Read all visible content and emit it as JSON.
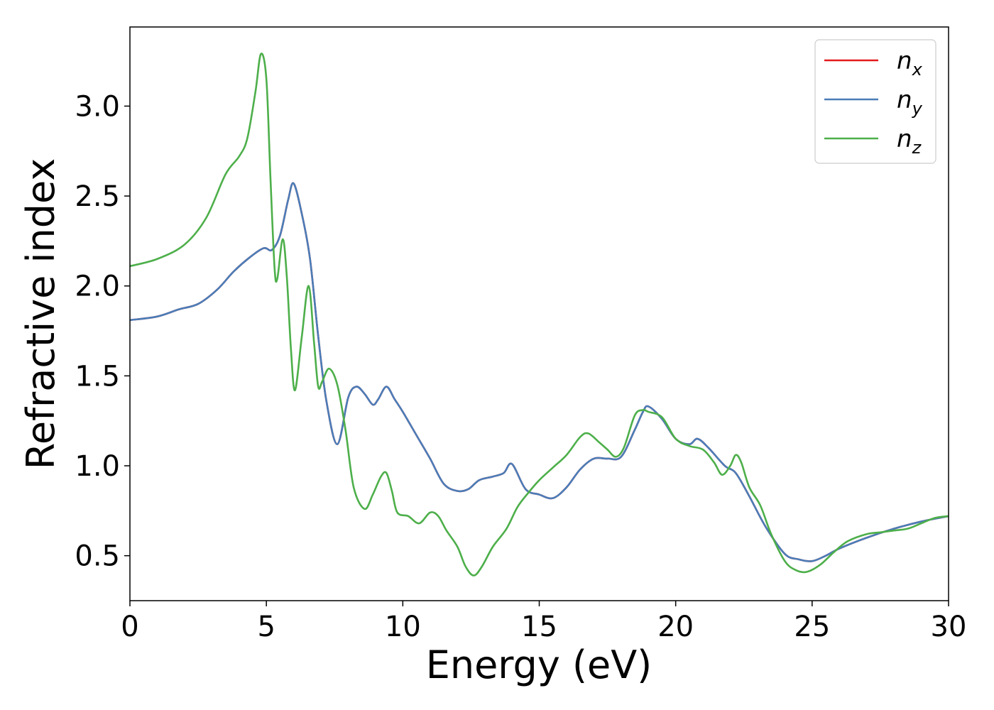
{
  "chart_data": {
    "type": "line",
    "xlabel": "Energy (eV)",
    "ylabel": "Refractive index",
    "xlim": [
      0,
      30
    ],
    "ylim": [
      0.25,
      3.44
    ],
    "xticks": [
      "0",
      "5",
      "10",
      "15",
      "20",
      "25",
      "30"
    ],
    "yticks": [
      "0.5",
      "1.0",
      "1.5",
      "2.0",
      "2.5",
      "3.0"
    ],
    "grid": false,
    "legend_position": "top-right",
    "series": [
      {
        "name": "n",
        "subscript": "x",
        "color": "#e41a1c",
        "x": [
          0,
          1,
          1.8,
          2.5,
          3.2,
          3.8,
          4.4,
          4.9,
          5.2,
          5.5,
          5.8,
          6.0,
          6.3,
          6.6,
          6.9,
          7.2,
          7.6,
          8.0,
          8.3,
          8.6,
          8.9,
          9.1,
          9.4,
          9.7,
          10.0,
          10.5,
          11.0,
          11.5,
          12.0,
          12.4,
          12.8,
          13.3,
          13.7,
          14.0,
          14.5,
          15.0,
          15.5,
          16.0,
          16.5,
          17.0,
          17.5,
          18.0,
          18.5,
          18.8,
          19.0,
          19.5,
          20.0,
          20.5,
          20.8,
          21.2,
          21.8,
          22.2,
          22.7,
          23.3,
          24.0,
          24.5,
          25.0,
          25.5,
          26.0,
          27.0,
          28.0,
          29.0,
          30.0
        ],
        "y": [
          1.81,
          1.83,
          1.87,
          1.9,
          1.98,
          2.08,
          2.16,
          2.21,
          2.2,
          2.28,
          2.48,
          2.57,
          2.4,
          2.15,
          1.72,
          1.36,
          1.12,
          1.38,
          1.44,
          1.4,
          1.34,
          1.37,
          1.44,
          1.37,
          1.3,
          1.17,
          1.04,
          0.9,
          0.86,
          0.87,
          0.92,
          0.94,
          0.96,
          1.01,
          0.87,
          0.84,
          0.82,
          0.88,
          0.98,
          1.04,
          1.04,
          1.05,
          1.2,
          1.3,
          1.33,
          1.26,
          1.15,
          1.12,
          1.15,
          1.1,
          1.0,
          0.96,
          0.83,
          0.66,
          0.51,
          0.48,
          0.47,
          0.5,
          0.54,
          0.6,
          0.65,
          0.69,
          0.72
        ]
      },
      {
        "name": "n",
        "subscript": "y",
        "color": "#4a7db8",
        "x": [
          0,
          1,
          1.8,
          2.5,
          3.2,
          3.8,
          4.4,
          4.9,
          5.2,
          5.5,
          5.8,
          6.0,
          6.3,
          6.6,
          6.9,
          7.2,
          7.6,
          8.0,
          8.3,
          8.6,
          8.9,
          9.1,
          9.4,
          9.7,
          10.0,
          10.5,
          11.0,
          11.5,
          12.0,
          12.4,
          12.8,
          13.3,
          13.7,
          14.0,
          14.5,
          15.0,
          15.5,
          16.0,
          16.5,
          17.0,
          17.5,
          18.0,
          18.5,
          18.8,
          19.0,
          19.5,
          20.0,
          20.5,
          20.8,
          21.2,
          21.8,
          22.2,
          22.7,
          23.3,
          24.0,
          24.5,
          25.0,
          25.5,
          26.0,
          27.0,
          28.0,
          29.0,
          30.0
        ],
        "y": [
          1.81,
          1.83,
          1.87,
          1.9,
          1.98,
          2.08,
          2.16,
          2.21,
          2.2,
          2.28,
          2.48,
          2.57,
          2.4,
          2.15,
          1.72,
          1.36,
          1.12,
          1.38,
          1.44,
          1.4,
          1.34,
          1.37,
          1.44,
          1.37,
          1.3,
          1.17,
          1.04,
          0.9,
          0.86,
          0.87,
          0.92,
          0.94,
          0.96,
          1.01,
          0.87,
          0.84,
          0.82,
          0.88,
          0.98,
          1.04,
          1.04,
          1.05,
          1.2,
          1.3,
          1.33,
          1.26,
          1.15,
          1.12,
          1.15,
          1.1,
          1.0,
          0.96,
          0.83,
          0.66,
          0.51,
          0.48,
          0.47,
          0.5,
          0.54,
          0.6,
          0.65,
          0.69,
          0.72
        ]
      },
      {
        "name": "n",
        "subscript": "z",
        "color": "#4daf4a",
        "x": [
          0,
          1,
          2,
          2.8,
          3.5,
          4.0,
          4.3,
          4.6,
          4.8,
          5.0,
          5.15,
          5.3,
          5.4,
          5.6,
          5.75,
          5.9,
          6.05,
          6.3,
          6.55,
          6.75,
          6.9,
          7.05,
          7.3,
          7.6,
          7.9,
          8.2,
          8.6,
          8.9,
          9.2,
          9.4,
          9.6,
          9.8,
          10.2,
          10.6,
          11.0,
          11.3,
          11.6,
          12.0,
          12.3,
          12.6,
          12.9,
          13.3,
          13.8,
          14.2,
          14.6,
          15.0,
          15.5,
          16.0,
          16.5,
          16.8,
          17.2,
          17.5,
          17.8,
          18.1,
          18.5,
          18.8,
          19.0,
          19.5,
          20.0,
          20.5,
          21.0,
          21.4,
          21.7,
          22.0,
          22.2,
          22.4,
          22.7,
          23.1,
          23.5,
          24.0,
          24.4,
          24.8,
          25.3,
          25.8,
          26.3,
          27.0,
          27.5,
          28.0,
          28.5,
          29.0,
          29.5,
          30.0
        ],
        "y": [
          2.11,
          2.15,
          2.23,
          2.38,
          2.62,
          2.72,
          2.82,
          3.08,
          3.29,
          3.15,
          2.6,
          2.1,
          2.04,
          2.26,
          2.05,
          1.65,
          1.42,
          1.72,
          2.0,
          1.68,
          1.44,
          1.47,
          1.54,
          1.45,
          1.2,
          0.88,
          0.76,
          0.84,
          0.94,
          0.96,
          0.86,
          0.74,
          0.72,
          0.68,
          0.74,
          0.72,
          0.64,
          0.55,
          0.44,
          0.39,
          0.44,
          0.55,
          0.65,
          0.77,
          0.85,
          0.92,
          0.99,
          1.06,
          1.16,
          1.18,
          1.13,
          1.09,
          1.05,
          1.1,
          1.28,
          1.31,
          1.3,
          1.27,
          1.15,
          1.11,
          1.09,
          1.02,
          0.95,
          1.0,
          1.06,
          1.02,
          0.88,
          0.78,
          0.62,
          0.47,
          0.42,
          0.41,
          0.45,
          0.52,
          0.58,
          0.62,
          0.63,
          0.64,
          0.65,
          0.68,
          0.71,
          0.72
        ]
      }
    ]
  }
}
